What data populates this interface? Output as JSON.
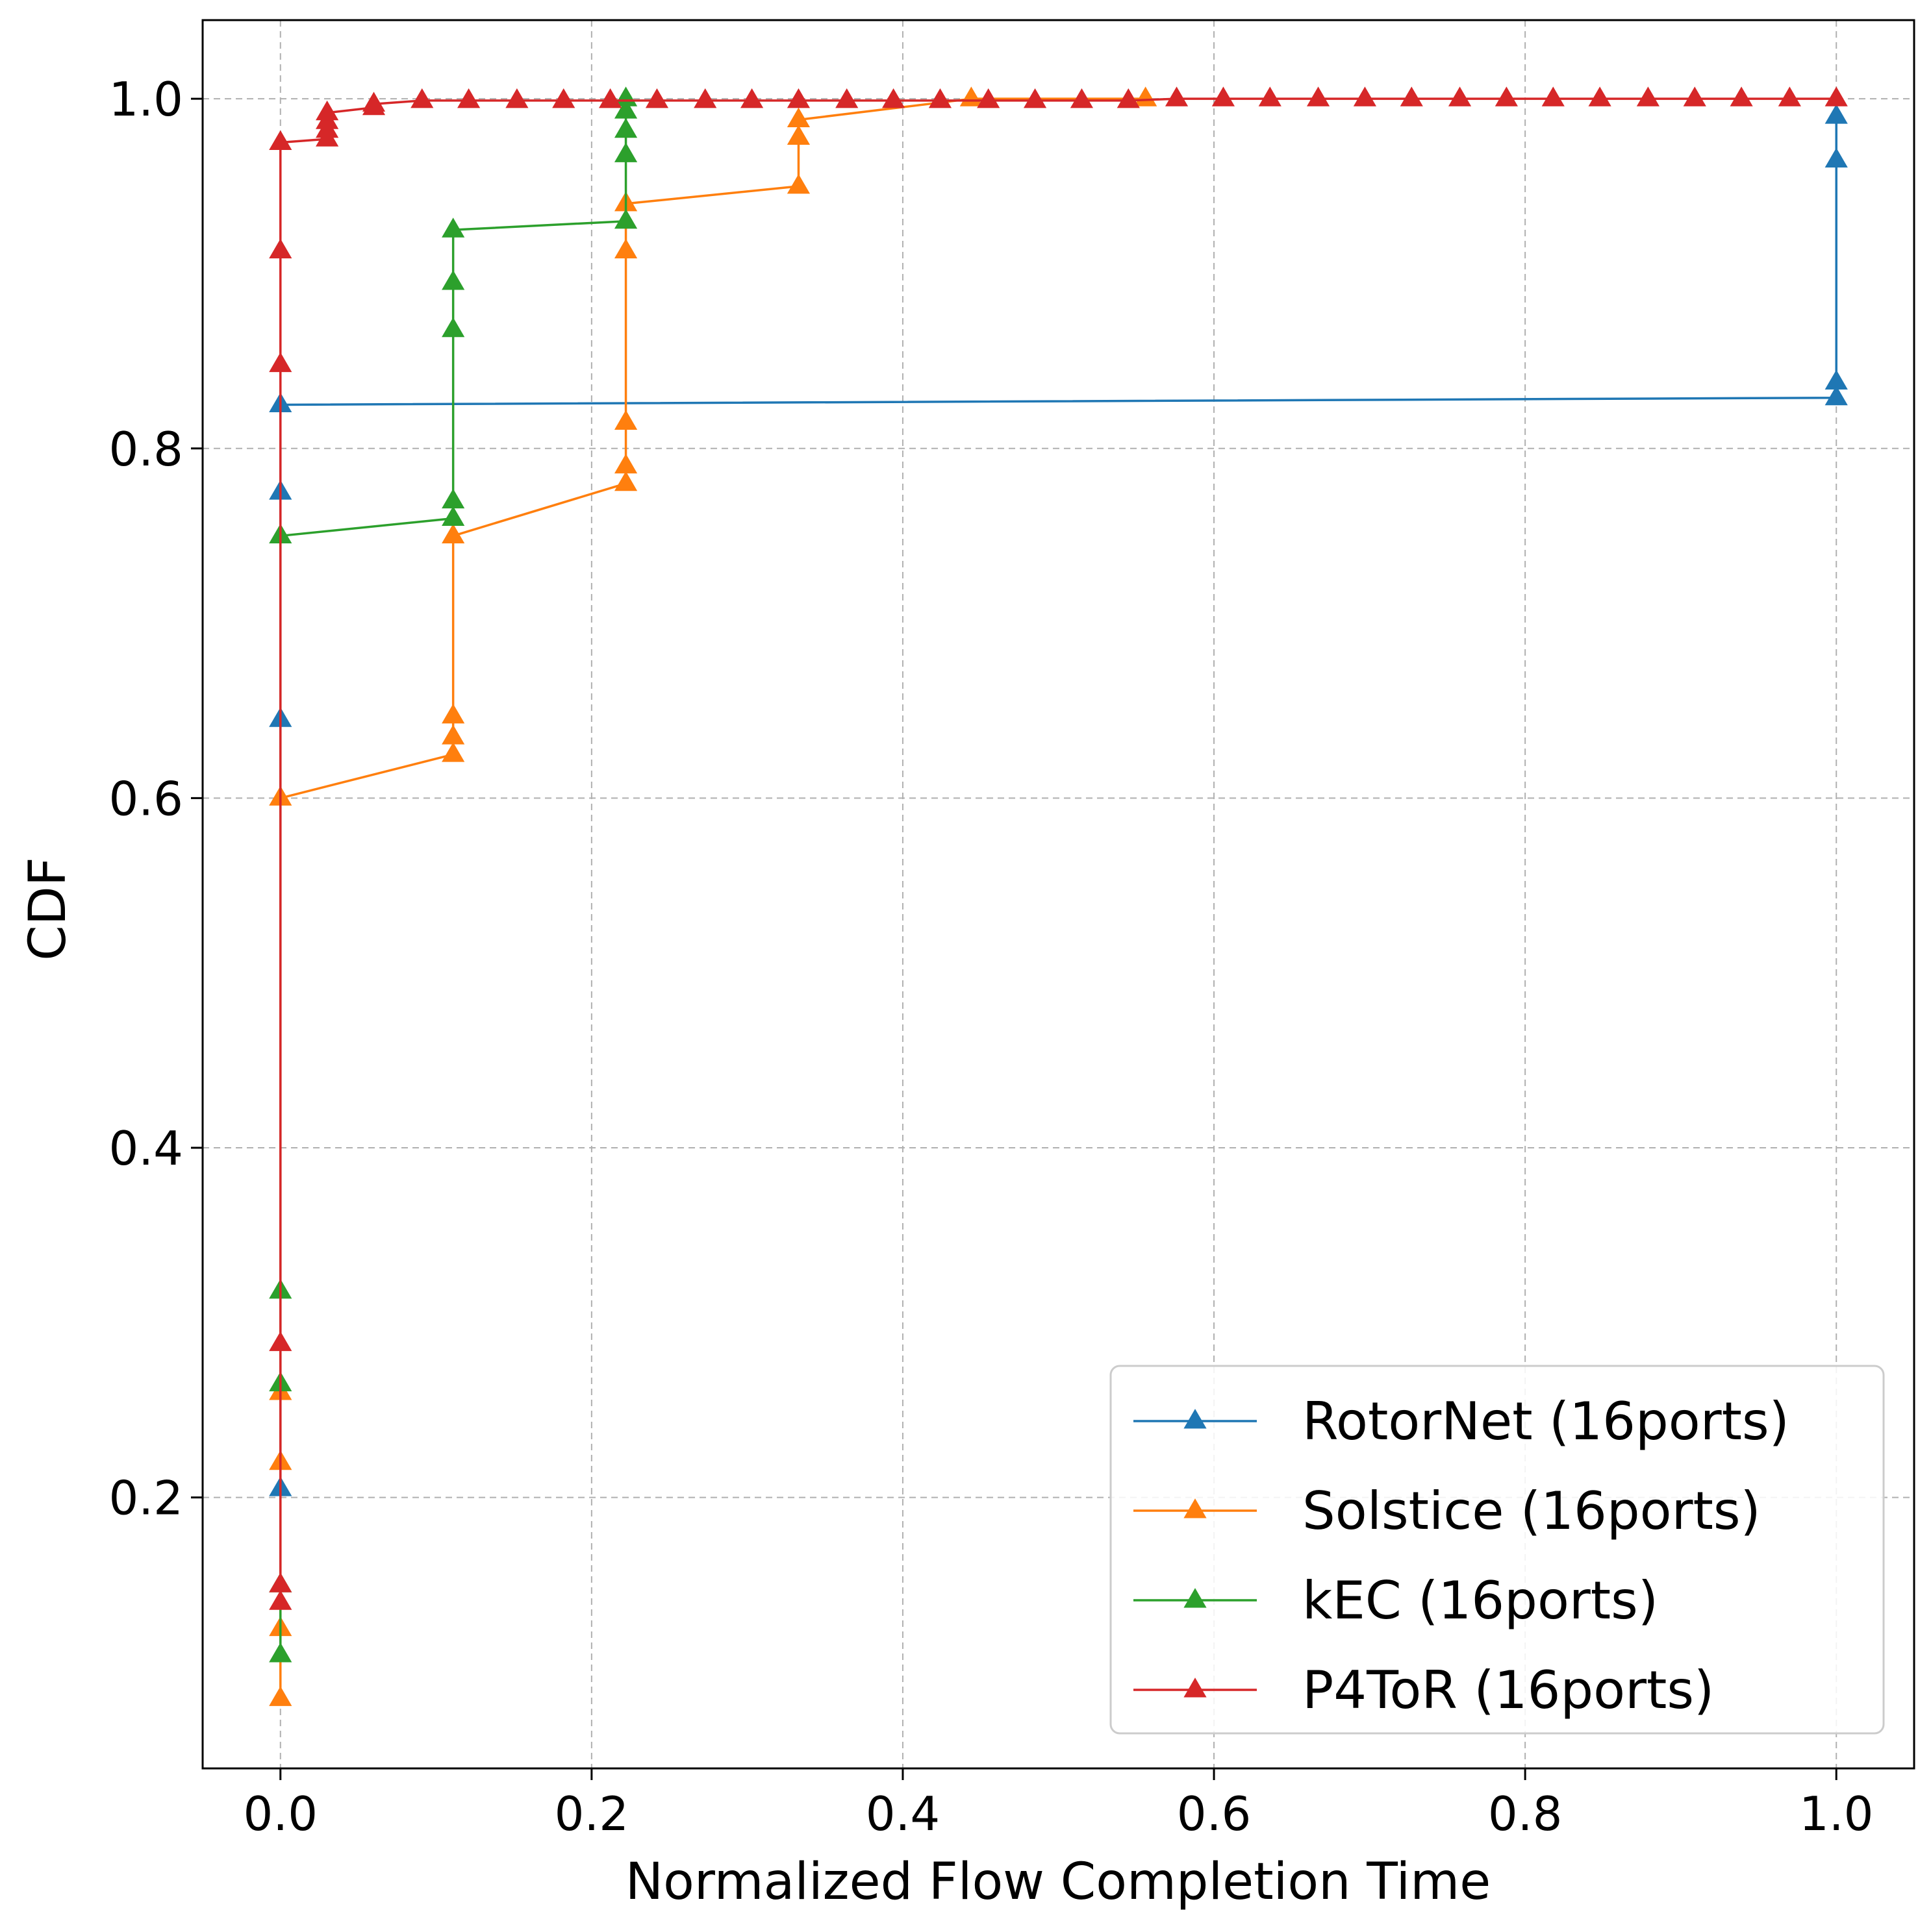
{
  "chart_data": {
    "type": "line",
    "title": "",
    "xlabel": "Normalized Flow Completion Time",
    "ylabel": "CDF",
    "xlim": [
      -0.05,
      1.05
    ],
    "ylim": [
      0.045,
      1.045
    ],
    "xticks": [
      0.0,
      0.2,
      0.4,
      0.6,
      0.8,
      1.0
    ],
    "xtick_labels": [
      "0.0",
      "0.2",
      "0.4",
      "0.6",
      "0.8",
      "1.0"
    ],
    "yticks": [
      0.2,
      0.4,
      0.6,
      0.8,
      1.0
    ],
    "ytick_labels": [
      "0.2",
      "0.4",
      "0.6",
      "0.8",
      "1.0"
    ],
    "grid": true,
    "legend_position": "lower-right",
    "marker": "triangle-up",
    "series": [
      {
        "name": "RotorNet (16ports)",
        "color": "#1f77b4",
        "x": [
          0,
          0,
          0,
          0,
          1,
          1,
          1,
          1
        ],
        "y": [
          0.205,
          0.645,
          0.775,
          0.825,
          0.829,
          0.838,
          0.965,
          0.99
        ]
      },
      {
        "name": "Solstice (16ports)",
        "color": "#ff7f0e",
        "x": [
          0,
          0,
          0,
          0,
          0,
          0.111,
          0.111,
          0.111,
          0.111,
          0.222,
          0.222,
          0.222,
          0.222,
          0.222,
          0.333,
          0.333,
          0.333,
          0.444,
          0.556
        ],
        "y": [
          0.085,
          0.125,
          0.22,
          0.26,
          0.6,
          0.625,
          0.635,
          0.647,
          0.75,
          0.78,
          0.79,
          0.815,
          0.913,
          0.94,
          0.95,
          0.978,
          0.988,
          1.0,
          1.0
        ]
      },
      {
        "name": "kEC (16ports)",
        "color": "#2ca02c",
        "x": [
          0,
          0,
          0,
          0,
          0,
          0.111,
          0.111,
          0.111,
          0.111,
          0.111,
          0.222,
          0.222,
          0.222,
          0.222,
          0.222
        ],
        "y": [
          0.11,
          0.15,
          0.265,
          0.318,
          0.75,
          0.76,
          0.77,
          0.868,
          0.895,
          0.925,
          0.93,
          0.968,
          0.982,
          0.993,
          1.0
        ]
      },
      {
        "name": "P4ToR (16ports)",
        "color": "#d62728",
        "x": [
          0,
          0,
          0,
          0,
          0,
          0,
          0.03,
          0.03,
          0.03,
          0.03,
          0.06,
          0.06,
          0.091,
          0.121,
          0.152,
          0.182,
          0.212,
          0.242,
          0.273,
          0.303,
          0.333,
          0.364,
          0.394,
          0.424,
          0.455,
          0.485,
          0.515,
          0.545,
          0.576,
          0.606,
          0.636,
          0.667,
          0.697,
          0.727,
          0.758,
          0.788,
          0.818,
          0.848,
          0.879,
          0.909,
          0.939,
          0.97,
          1.0
        ],
        "y": [
          0.14,
          0.15,
          0.288,
          0.848,
          0.913,
          0.975,
          0.977,
          0.982,
          0.987,
          0.992,
          0.995,
          0.997,
          0.999,
          0.999,
          0.999,
          0.999,
          0.999,
          0.999,
          0.999,
          0.999,
          0.999,
          0.999,
          0.999,
          0.999,
          0.999,
          0.999,
          0.999,
          0.999,
          1.0,
          1.0,
          1.0,
          1.0,
          1.0,
          1.0,
          1.0,
          1.0,
          1.0,
          1.0,
          1.0,
          1.0,
          1.0,
          1.0,
          1.0
        ]
      }
    ]
  }
}
